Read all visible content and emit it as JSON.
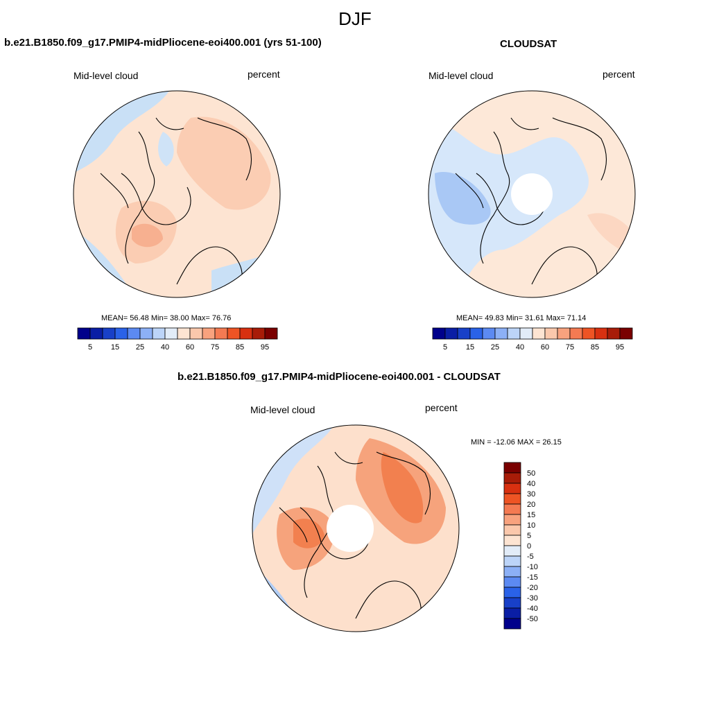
{
  "season": "DJF",
  "panels": [
    {
      "id": "model",
      "title": "b.e21.B1850.f09_g17.PMIP4-midPliocene-eoi400.001 (yrs 51-100)",
      "left_label": "Mid-level cloud",
      "right_label": "percent",
      "stats": "MEAN=  56.48  Min=  38.00  Max=  76.76",
      "has_pole_hole": false,
      "palette": [
        "#b6d8f3",
        "#fde4d2",
        "#fbd0b7",
        "#f9bba0"
      ]
    },
    {
      "id": "obs",
      "title": "CLOUDSAT",
      "left_label": "Mid-level cloud",
      "right_label": "percent",
      "stats": "MEAN=  49.83  Min=  31.61  Max=  71.14",
      "has_pole_hole": true,
      "palette": [
        "#a9c8f5",
        "#d6e7fa",
        "#fde8d8",
        "#fcd7c2"
      ]
    },
    {
      "id": "diff",
      "title": "b.e21.B1850.f09_g17.PMIP4-midPliocene-eoi400.001 - CLOUDSAT",
      "left_label": "Mid-level cloud",
      "right_label": "percent",
      "stats": "MIN = -12.06 MAX =  26.15",
      "has_pole_hole": true,
      "palette": [
        "#b0cdf5",
        "#fde0cc",
        "#f9b08a",
        "#f2804f"
      ]
    }
  ],
  "abs_colorbar": {
    "colors": [
      "#00008b",
      "#0a1ea5",
      "#1840c8",
      "#2a62e8",
      "#5c8af2",
      "#8cb0f6",
      "#bcd4f8",
      "#e2ecf8",
      "#fde4d2",
      "#fbc8ac",
      "#f8a27e",
      "#f47a52",
      "#ee5424",
      "#d83010",
      "#a81c08",
      "#7a0000"
    ],
    "labels": [
      "5",
      "15",
      "25",
      "40",
      "60",
      "75",
      "85",
      "95"
    ]
  },
  "diff_colorbar": {
    "colors": [
      "#7a0000",
      "#a81c08",
      "#d83010",
      "#ee5424",
      "#f47a52",
      "#f8a27e",
      "#fbc8ac",
      "#fde4d2",
      "#e2ecf8",
      "#bcd4f8",
      "#8cb0f6",
      "#5c8af2",
      "#2a62e8",
      "#1840c8",
      "#0a1ea5",
      "#00008b"
    ],
    "labels": [
      "50",
      "40",
      "30",
      "20",
      "15",
      "10",
      "5",
      "0",
      "-5",
      "-10",
      "-15",
      "-20",
      "-30",
      "-40",
      "-50"
    ]
  }
}
